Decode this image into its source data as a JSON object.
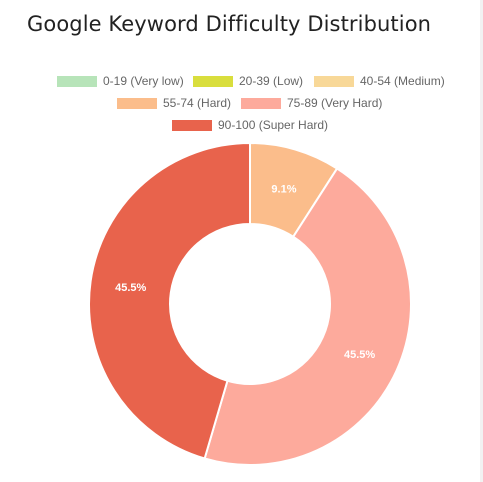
{
  "chart_data": {
    "type": "pie",
    "title": "Google Keyword Difficulty Distribution",
    "donut": true,
    "legend_position": "top",
    "series": [
      {
        "name": "0-19 (Very low)",
        "value": 0,
        "color": "#b7e4b9"
      },
      {
        "name": "20-39 (Low)",
        "value": 0,
        "color": "#d9de3d"
      },
      {
        "name": "40-54 (Medium)",
        "value": 0,
        "color": "#f8d898"
      },
      {
        "name": "55-74 (Hard)",
        "value": 9.1,
        "color": "#fbbd8b",
        "label": "9.1%"
      },
      {
        "name": "75-89 (Very Hard)",
        "value": 45.5,
        "color": "#fdaa9c",
        "label": "45.5%"
      },
      {
        "name": "90-100 (Super Hard)",
        "value": 45.5,
        "color": "#e8634c",
        "label": "45.5%"
      }
    ]
  }
}
